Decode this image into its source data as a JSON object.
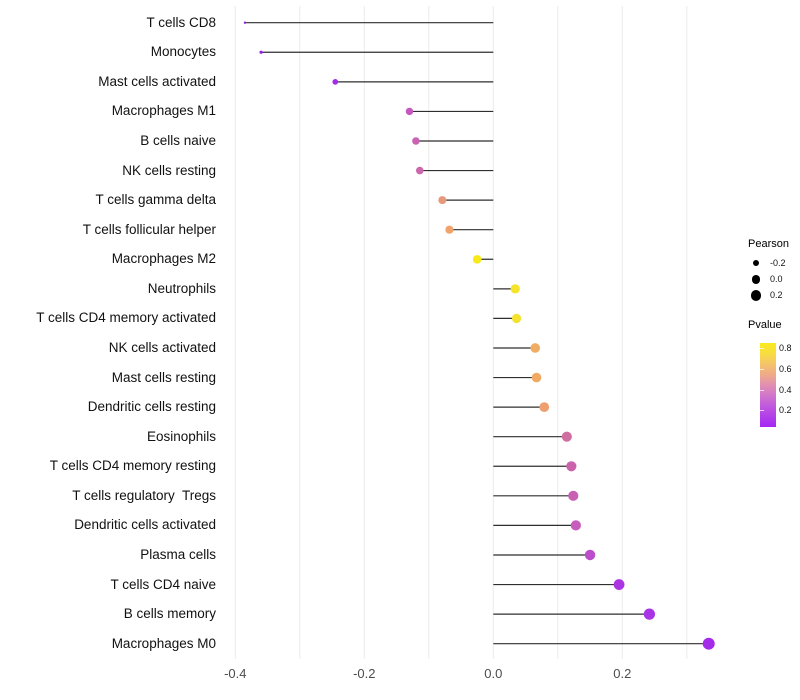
{
  "chart_data": {
    "type": "lollipop",
    "orientation": "horizontal",
    "xlabel": "",
    "ylabel": "",
    "xlim": [
      -0.425,
      0.37
    ],
    "grid": "vertical-only",
    "gridline_values": [
      -0.4,
      -0.3,
      -0.2,
      -0.1,
      0.0,
      0.1,
      0.2,
      0.3
    ],
    "x_ticks": [
      {
        "label": "-0.4",
        "value": -0.4
      },
      {
        "label": "-0.2",
        "value": -0.2
      },
      {
        "label": "0.0",
        "value": 0.0
      },
      {
        "label": "0.2",
        "value": 0.2
      }
    ],
    "size_domain": [
      -0.385,
      0.334
    ],
    "rows": [
      {
        "label": "T cells CD8",
        "value": -0.385,
        "color": "#8E20D6"
      },
      {
        "label": "Monocytes",
        "value": -0.36,
        "color": "#9B23E3"
      },
      {
        "label": "Mast cells activated",
        "value": -0.245,
        "color": "#A42BE9"
      },
      {
        "label": "Macrophages M1",
        "value": -0.13,
        "color": "#C458BE"
      },
      {
        "label": "B cells naive",
        "value": -0.12,
        "color": "#CB63B3"
      },
      {
        "label": "NK cells resting",
        "value": -0.114,
        "color": "#CC67AD"
      },
      {
        "label": "T cells gamma delta",
        "value": -0.079,
        "color": "#E9997B"
      },
      {
        "label": "T cells follicular helper",
        "value": -0.068,
        "color": "#F0A36B"
      },
      {
        "label": "Macrophages M2",
        "value": -0.025,
        "color": "#F8EA18"
      },
      {
        "label": "Neutrophils",
        "value": 0.034,
        "color": "#F5E42A"
      },
      {
        "label": "T cells CD4 memory activated",
        "value": 0.036,
        "color": "#F4E230"
      },
      {
        "label": "NK cells activated",
        "value": 0.065,
        "color": "#F0AC62"
      },
      {
        "label": "Mast cells resting",
        "value": 0.067,
        "color": "#F0AA64"
      },
      {
        "label": "Dendritic cells resting",
        "value": 0.079,
        "color": "#ED9F6F"
      },
      {
        "label": "Eosinophils",
        "value": 0.114,
        "color": "#CE6F9F"
      },
      {
        "label": "T cells CD4 memory resting",
        "value": 0.121,
        "color": "#CA63AC"
      },
      {
        "label": "T cells regulatory  Tregs",
        "value": 0.124,
        "color": "#C860B3"
      },
      {
        "label": "Dendritic cells activated",
        "value": 0.128,
        "color": "#C65CBB"
      },
      {
        "label": "Plasma cells",
        "value": 0.15,
        "color": "#BD4ECB"
      },
      {
        "label": "T cells CD4 naive",
        "value": 0.195,
        "color": "#AC35E2"
      },
      {
        "label": "B cells memory",
        "value": 0.242,
        "color": "#A934E6"
      },
      {
        "label": "Macrophages M0",
        "value": 0.334,
        "color": "#A32BE9"
      }
    ],
    "legend": {
      "size": {
        "title": "Pearson",
        "dot_color": "#000000",
        "entries": [
          {
            "label": "-0.2",
            "value": -0.2
          },
          {
            "label": "0.0",
            "value": 0.0
          },
          {
            "label": "0.2",
            "value": 0.2
          }
        ]
      },
      "color": {
        "title": "Pvalue",
        "range": [
          0.04,
          0.85
        ],
        "gradient_top_to_bottom": [
          "#F9EB1E",
          "#F8DC41",
          "#F4C56A",
          "#EFAA87",
          "#E190B2",
          "#D175CB",
          "#C059DD",
          "#B13FE9",
          "#A527F4"
        ],
        "ticks": [
          {
            "label": "0.8",
            "value": 0.8
          },
          {
            "label": "0.6",
            "value": 0.6
          },
          {
            "label": "0.4",
            "value": 0.4
          },
          {
            "label": "0.2",
            "value": 0.2
          }
        ]
      }
    },
    "style": {
      "stem_color": "#2F2F2F",
      "gridline_color": "#EBEBEB",
      "background": "#FFFFFF"
    }
  }
}
